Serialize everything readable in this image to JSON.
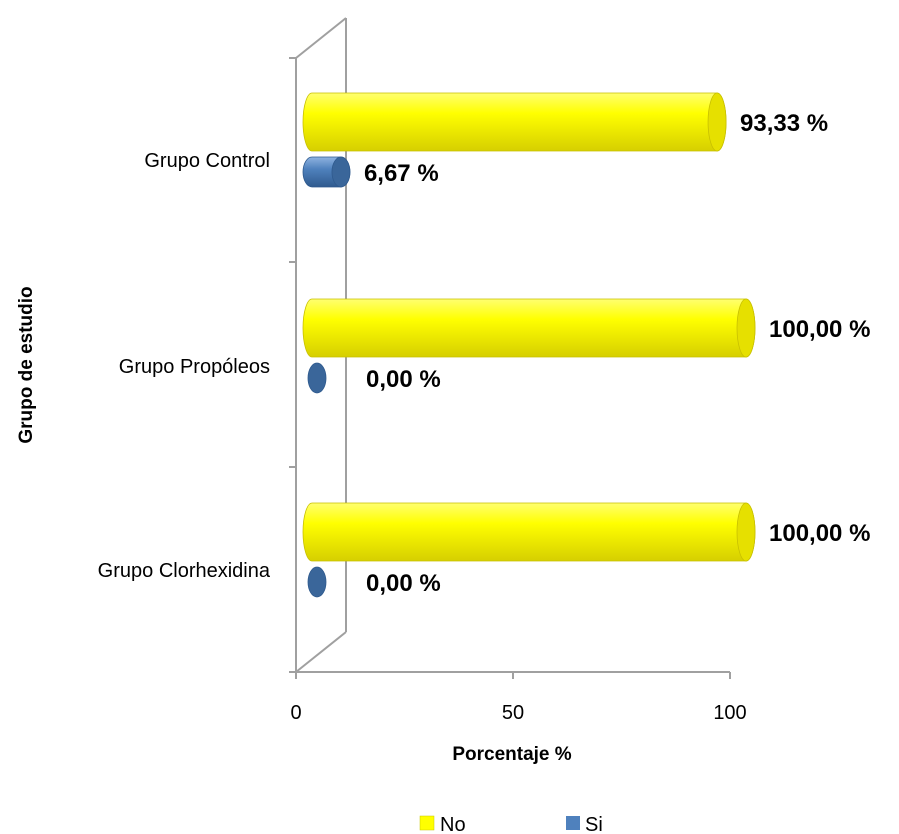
{
  "chart_data": {
    "type": "bar",
    "orientation": "horizontal",
    "style": "3d-cylinder",
    "categories": [
      "Grupo Control",
      "Grupo Propóleos",
      "Grupo Clorhexidina"
    ],
    "series": [
      {
        "name": "No",
        "values": [
          93.33,
          100.0,
          100.0
        ],
        "labels": [
          "93,33 %",
          "100,00 %",
          "100,00 %"
        ],
        "color": "#ffff00"
      },
      {
        "name": "Si",
        "values": [
          6.67,
          0.0,
          0.0
        ],
        "labels": [
          "6,67 %",
          "0,00 %",
          "0,00 %"
        ],
        "color": "#4f81bd"
      }
    ],
    "xlabel": "Porcentaje %",
    "ylabel": "Grupo de estudio",
    "xlim": [
      0,
      100
    ],
    "xticks": [
      0,
      50,
      100
    ],
    "grid": false,
    "legend_position": "bottom"
  }
}
